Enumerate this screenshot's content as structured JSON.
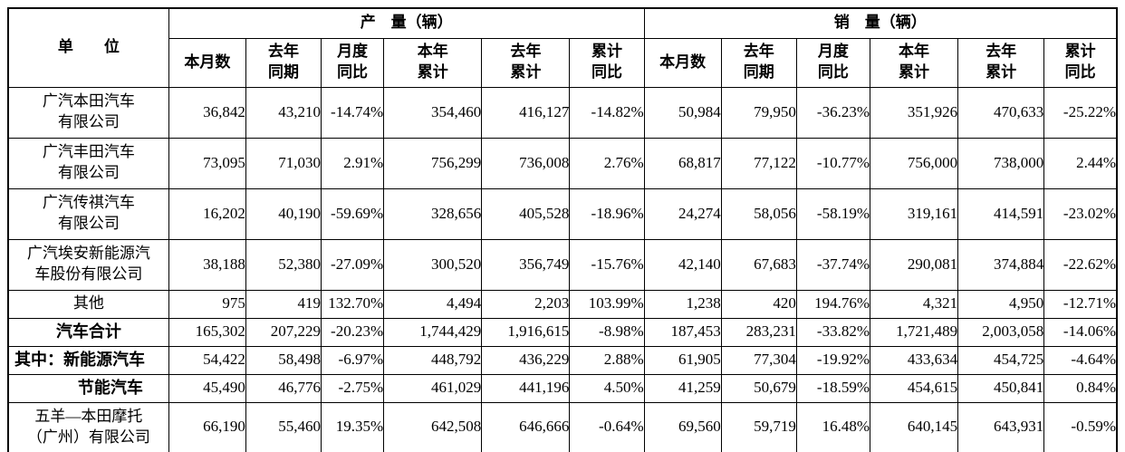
{
  "table": {
    "unit_header": "单　　位",
    "production_header": "产　量（辆）",
    "sales_header": "销　量（辆）",
    "columns": [
      "本月数",
      "去年\n同期",
      "月度\n同比",
      "本年\n累计",
      "去年\n累计",
      "累计\n同比"
    ],
    "rows": [
      {
        "name": "广汽本田汽车\n有限公司",
        "bold": false,
        "align": "center",
        "production": [
          "36,842",
          "43,210",
          "-14.74%",
          "354,460",
          "416,127",
          "-14.82%"
        ],
        "sales": [
          "50,984",
          "79,950",
          "-36.23%",
          "351,926",
          "470,633",
          "-25.22%"
        ]
      },
      {
        "name": "广汽丰田汽车\n有限公司",
        "bold": false,
        "align": "center",
        "production": [
          "73,095",
          "71,030",
          "2.91%",
          "756,299",
          "736,008",
          "2.76%"
        ],
        "sales": [
          "68,817",
          "77,122",
          "-10.77%",
          "756,000",
          "738,000",
          "2.44%"
        ]
      },
      {
        "name": "广汽传祺汽车\n有限公司",
        "bold": false,
        "align": "center",
        "production": [
          "16,202",
          "40,190",
          "-59.69%",
          "328,656",
          "405,528",
          "-18.96%"
        ],
        "sales": [
          "24,274",
          "58,056",
          "-58.19%",
          "319,161",
          "414,591",
          "-23.02%"
        ]
      },
      {
        "name": "广汽埃安新能源汽\n车股份有限公司",
        "bold": false,
        "align": "center",
        "production": [
          "38,188",
          "52,380",
          "-27.09%",
          "300,520",
          "356,749",
          "-15.76%"
        ],
        "sales": [
          "42,140",
          "67,683",
          "-37.74%",
          "290,081",
          "374,884",
          "-22.62%"
        ]
      },
      {
        "name": "其他",
        "bold": false,
        "align": "center",
        "production": [
          "975",
          "419",
          "132.70%",
          "4,494",
          "2,203",
          "103.99%"
        ],
        "sales": [
          "1,238",
          "420",
          "194.76%",
          "4,321",
          "4,950",
          "-12.71%"
        ]
      },
      {
        "name": "汽车合计",
        "bold": true,
        "align": "center",
        "production": [
          "165,302",
          "207,229",
          "-20.23%",
          "1,744,429",
          "1,916,615",
          "-8.98%"
        ],
        "sales": [
          "187,453",
          "283,231",
          "-33.82%",
          "1,721,489",
          "2,003,058",
          "-14.06%"
        ]
      },
      {
        "name": "其中：新能源汽车",
        "bold": true,
        "align": "left",
        "production": [
          "54,422",
          "58,498",
          "-6.97%",
          "448,792",
          "436,229",
          "2.88%"
        ],
        "sales": [
          "61,905",
          "77,304",
          "-19.92%",
          "433,634",
          "454,725",
          "-4.64%"
        ]
      },
      {
        "name": "节能汽车",
        "bold": true,
        "align": "center-indent",
        "production": [
          "45,490",
          "46,776",
          "-2.75%",
          "461,029",
          "441,196",
          "4.50%"
        ],
        "sales": [
          "41,259",
          "50,679",
          "-18.59%",
          "454,615",
          "450,841",
          "0.84%"
        ]
      },
      {
        "name": "五羊—本田摩托\n（广州）有限公司",
        "bold": false,
        "align": "center",
        "production": [
          "66,190",
          "55,460",
          "19.35%",
          "642,508",
          "646,666",
          "-0.64%"
        ],
        "sales": [
          "69,560",
          "59,719",
          "16.48%",
          "640,145",
          "643,931",
          "-0.59%"
        ]
      }
    ]
  }
}
